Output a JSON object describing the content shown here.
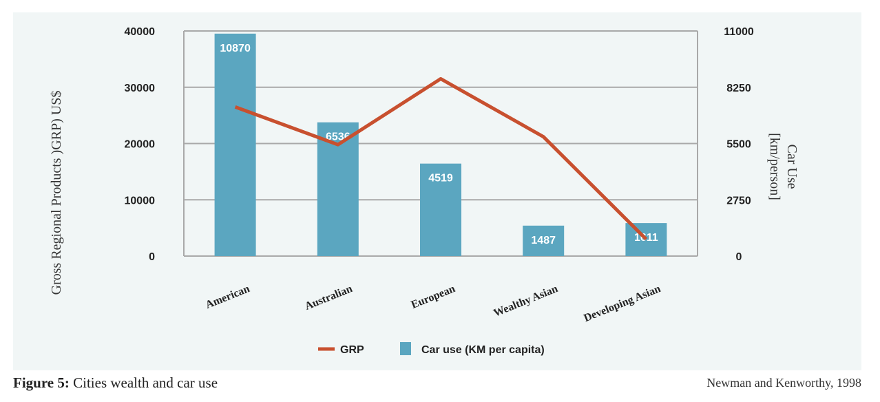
{
  "chart_data": {
    "type": "bar",
    "categories": [
      "American",
      "Australian",
      "European",
      "Wealthy Asian",
      "Developing Asian"
    ],
    "series": [
      {
        "name": "Car use (KM per capita)",
        "kind": "bar",
        "axis": "right",
        "color": "#5ba6c0",
        "values": [
          10870,
          6536,
          4519,
          1487,
          1611
        ],
        "labels": [
          "10870",
          "6536",
          "4519",
          "1487",
          "1611"
        ]
      },
      {
        "name": "GRP",
        "kind": "line",
        "axis": "left",
        "color": "#c8502f",
        "values": [
          26500,
          19800,
          31500,
          21200,
          3000
        ]
      }
    ],
    "left_axis": {
      "title": "Gross Regional Products )GRP) US$",
      "ylim": [
        0,
        40000
      ],
      "ticks": [
        "40000",
        "30000",
        "20000",
        "10000",
        "0"
      ],
      "tick_values": [
        40000,
        30000,
        20000,
        10000,
        0
      ]
    },
    "right_axis": {
      "title_line1": "Car Use",
      "title_line2": "[km/person]",
      "ylim": [
        0,
        11000
      ],
      "ticks": [
        "11000",
        "8250",
        "5500",
        "2750",
        "0"
      ],
      "tick_values": [
        11000,
        8250,
        5500,
        2750,
        0
      ]
    },
    "grid": true,
    "legend_position": "bottom-center"
  },
  "caption": {
    "label": "Figure 5:",
    "text": " Cities wealth and car use"
  },
  "source": "Newman and Kenworthy, 1998"
}
